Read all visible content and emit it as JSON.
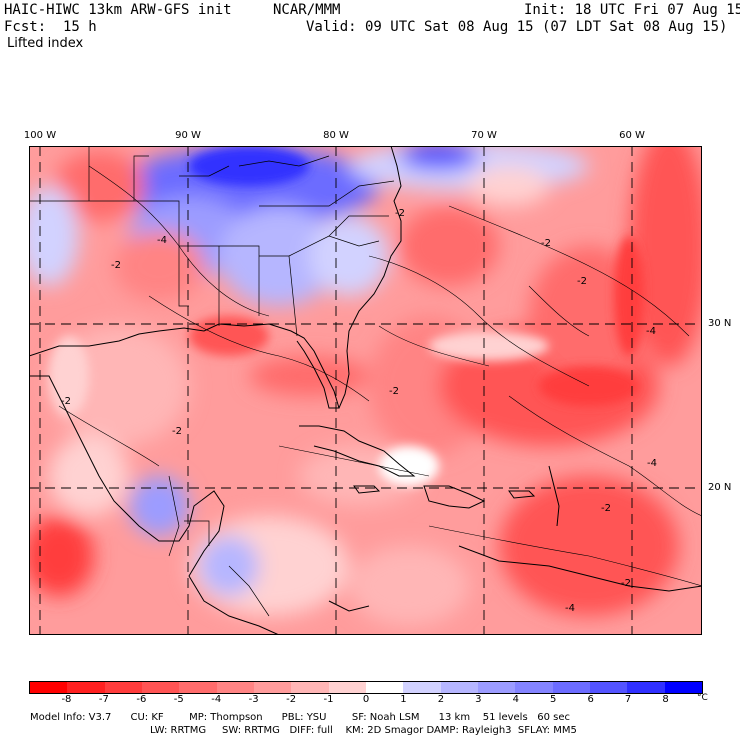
{
  "header": {
    "model": "HAIC-HIWC 13km ARW-GFS init",
    "org": "NCAR/MMM",
    "init": "Init: 18 UTC Fri 07 Aug 15",
    "fcst": "Fcst:  15 h",
    "valid": "Valid: 09 UTC Sat 08 Aug 15 (07 LDT Sat 08 Aug 15)",
    "field": "Lifted index"
  },
  "map": {
    "lon_labels": [
      "100 W",
      "90 W",
      "80 W",
      "70 W",
      "60 W"
    ],
    "lat_labels": [
      "30 N",
      "20 N"
    ],
    "contour_labels": [
      "-4",
      "-2",
      "-2",
      "-2",
      "-2",
      "-2",
      "-2",
      "-2",
      "-4",
      "-2",
      "-2",
      "-4",
      "-4"
    ]
  },
  "colorbar": {
    "labels": [
      "-8",
      "-7",
      "-6",
      "-5",
      "-4",
      "-3",
      "-2",
      "-1",
      "0",
      "1",
      "2",
      "3",
      "4",
      "5",
      "6",
      "7",
      "8"
    ],
    "unit": "°C",
    "colors": [
      "#ff0000",
      "#ff2020",
      "#ff3c3c",
      "#ff5454",
      "#ff6c6c",
      "#ff8484",
      "#ff9c9c",
      "#ffb6b6",
      "#ffd2d2",
      "#ffffff",
      "#d2d2ff",
      "#b6b6ff",
      "#9c9cff",
      "#8484ff",
      "#6c6cff",
      "#5454ff",
      "#3030ff",
      "#0000ff"
    ]
  },
  "footer": {
    "line1": "Model Info: V3.7      CU: KF        MP: Thompson      PBL: YSU        SF: Noah LSM      13 km    51 levels   60 sec",
    "line2": "LW: RRTMG     SW: RRTMG   DIFF: full    KM: 2D Smagor DAMP: Rayleigh3  SFLAY: MM5"
  }
}
